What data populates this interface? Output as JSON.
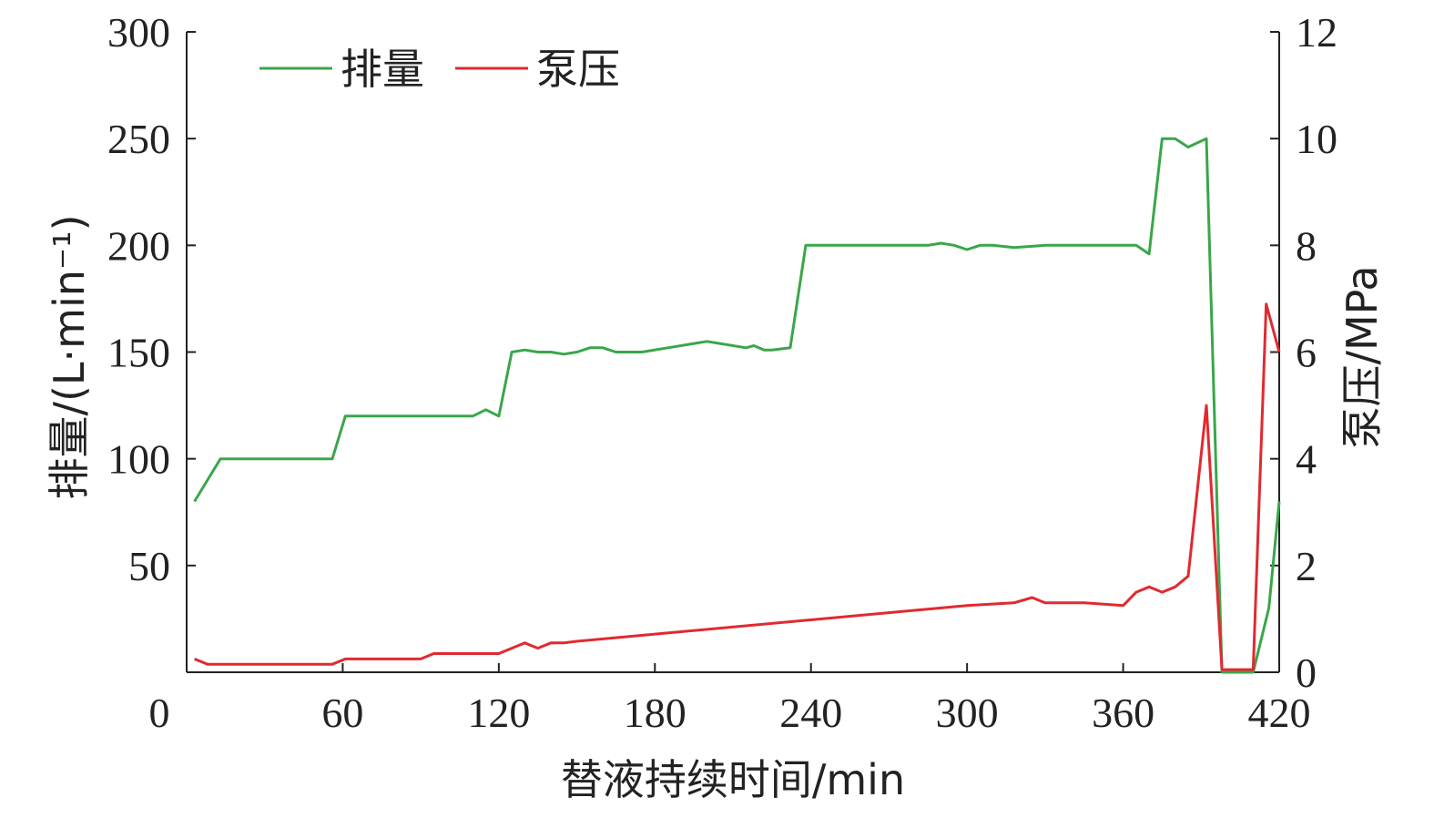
{
  "chart_data": {
    "type": "line",
    "xlabel": "替液持续时间/min",
    "ylabel_left": "排量/(L·min⁻¹)",
    "ylabel_right": "泵压/MPa",
    "xlim": [
      0,
      420
    ],
    "ylim_left": [
      0,
      300
    ],
    "ylim_right": [
      0,
      12
    ],
    "x_ticks": [
      "0",
      "60",
      "120",
      "180",
      "240",
      "300",
      "360",
      "420"
    ],
    "y_left_ticks": [
      "50",
      "100",
      "150",
      "200",
      "250",
      "300"
    ],
    "y_right_ticks": [
      "0",
      "2",
      "4",
      "6",
      "8",
      "10",
      "12"
    ],
    "legend_position": "top-left",
    "series": [
      {
        "name": "排量",
        "axis": "left",
        "color": "#3aa64a",
        "x": [
          3,
          13,
          40,
          56,
          61,
          80,
          95,
          110,
          115,
          120,
          125,
          130,
          135,
          140,
          145,
          150,
          155,
          160,
          165,
          175,
          185,
          195,
          200,
          205,
          215,
          218,
          222,
          225,
          232,
          238,
          242,
          260,
          280,
          285,
          290,
          295,
          300,
          305,
          310,
          318,
          330,
          340,
          350,
          360,
          365,
          370,
          375,
          380,
          385,
          392,
          398,
          405,
          410,
          416,
          420
        ],
        "y": [
          80,
          100,
          100,
          100,
          120,
          120,
          120,
          120,
          123,
          120,
          150,
          151,
          150,
          150,
          149,
          150,
          152,
          152,
          150,
          150,
          152,
          154,
          155,
          154,
          152,
          153,
          151,
          151,
          152,
          200,
          200,
          200,
          200,
          200,
          201,
          200,
          198,
          200,
          200,
          199,
          200,
          200,
          200,
          200,
          200,
          196,
          250,
          250,
          246,
          250,
          0,
          0,
          0,
          30,
          80
        ]
      },
      {
        "name": "泵压",
        "axis": "right",
        "color": "#e02a30",
        "x": [
          3,
          8,
          20,
          56,
          61,
          90,
          95,
          120,
          125,
          130,
          135,
          140,
          145,
          150,
          300,
          318,
          325,
          330,
          335,
          345,
          360,
          365,
          370,
          375,
          380,
          385,
          392,
          398,
          405,
          410,
          415,
          420
        ],
        "y": [
          0.25,
          0.15,
          0.15,
          0.15,
          0.25,
          0.25,
          0.35,
          0.35,
          0.45,
          0.55,
          0.45,
          0.55,
          0.55,
          0.58,
          1.25,
          1.3,
          1.4,
          1.3,
          1.3,
          1.3,
          1.25,
          1.5,
          1.6,
          1.5,
          1.6,
          1.8,
          5.0,
          0.05,
          0.05,
          0.05,
          6.9,
          6.0
        ]
      }
    ]
  }
}
